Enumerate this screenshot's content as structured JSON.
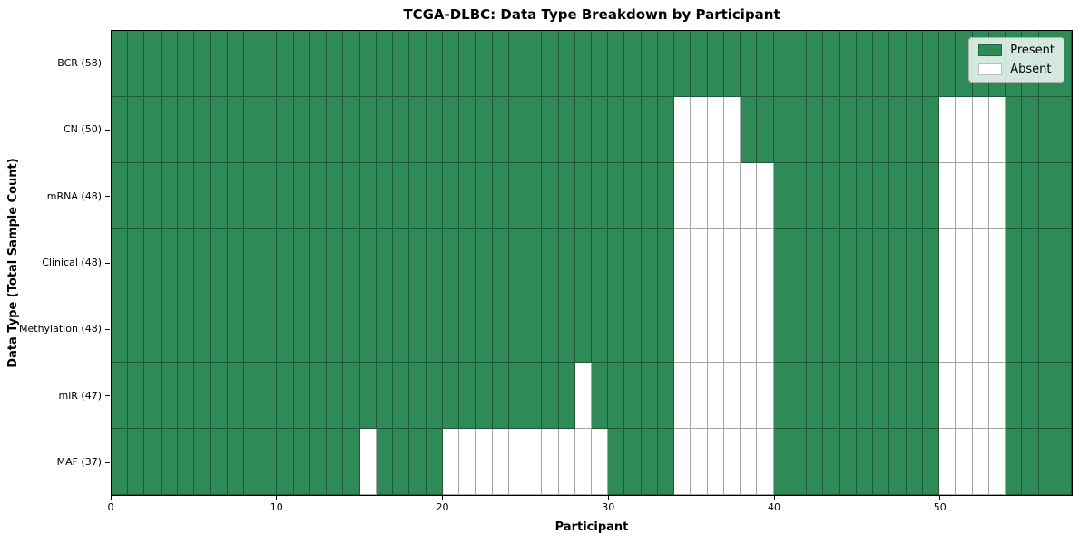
{
  "chart_data": {
    "type": "heatmap",
    "title": "TCGA-DLBC: Data Type Breakdown by Participant",
    "xlabel": "Participant",
    "ylabel": "Data Type (Total Sample Count)",
    "n_participants": 58,
    "x_ticks": [
      0,
      10,
      20,
      30,
      40,
      50
    ],
    "rows": [
      {
        "label": "BCR (58)",
        "present_count": 58,
        "absent_participants": []
      },
      {
        "label": "CN (50)",
        "present_count": 50,
        "absent_participants": [
          34,
          35,
          36,
          37,
          50,
          51,
          52,
          53
        ]
      },
      {
        "label": "mRNA (48)",
        "present_count": 48,
        "absent_participants": [
          34,
          35,
          36,
          37,
          38,
          39,
          50,
          51,
          52,
          53
        ]
      },
      {
        "label": "Clinical (48)",
        "present_count": 48,
        "absent_participants": [
          34,
          35,
          36,
          37,
          38,
          39,
          50,
          51,
          52,
          53
        ]
      },
      {
        "label": "Methylation (48)",
        "present_count": 48,
        "absent_participants": [
          34,
          35,
          36,
          37,
          38,
          39,
          50,
          51,
          52,
          53
        ]
      },
      {
        "label": "miR (47)",
        "present_count": 47,
        "absent_participants": [
          28,
          34,
          35,
          36,
          37,
          38,
          39,
          50,
          51,
          52,
          53
        ]
      },
      {
        "label": "MAF (37)",
        "present_count": 37,
        "absent_participants": [
          15,
          20,
          21,
          22,
          23,
          24,
          25,
          26,
          27,
          28,
          29,
          34,
          35,
          36,
          37,
          38,
          39,
          50,
          51,
          52,
          53
        ]
      }
    ],
    "legend": {
      "position": "upper right",
      "items": [
        {
          "label": "Present",
          "color": "#2e8b57"
        },
        {
          "label": "Absent",
          "color": "#ffffff"
        }
      ]
    },
    "colors": {
      "present": "#2e8b57",
      "absent": "#ffffff",
      "grid_line": "rgba(0,0,0,0.35)",
      "frame": "#000000",
      "background": "#ffffff"
    },
    "layout_hints": {
      "grid": "cell borders visible on all cells",
      "x_tick_alignment": "left edge of each participant column"
    }
  }
}
